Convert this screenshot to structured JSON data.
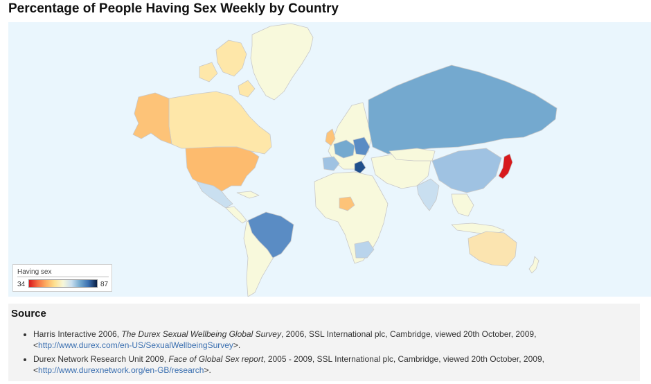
{
  "title": "Percentage of People Having Sex Weekly by Country",
  "legend": {
    "title": "Having sex",
    "min": "34",
    "max": "87",
    "gradient": [
      "#d7191c",
      "#f46d43",
      "#fdae61",
      "#fee090",
      "#f7f7d9",
      "#c9dff0",
      "#74a9cf",
      "#3a6fb0",
      "#0b1f44"
    ]
  },
  "colors": {
    "ocean": "#eaf6fd",
    "no_data": "#f8f9dc",
    "border": "#c8c8c8"
  },
  "source": {
    "heading": "Source",
    "items": [
      {
        "pre": "Harris Interactive 2006, ",
        "italic": "The Durex Sexual Wellbeing Global Survey",
        "post": ", 2006, SSL International plc, Cambridge, viewed 20th October, 2009, <",
        "link": "http://www.durex.com/en-US/SexualWellbeingSurvey",
        "end": ">."
      },
      {
        "pre": "Durex Network Research Unit 2009, ",
        "italic": "Face of Global Sex report",
        "post": ", 2005 - 2009, SSL International plc, Cambridge, viewed 20th October, 2009, <",
        "link": "http://www.durexnetwork.org/en-GB/research",
        "end": ">."
      }
    ]
  }
}
